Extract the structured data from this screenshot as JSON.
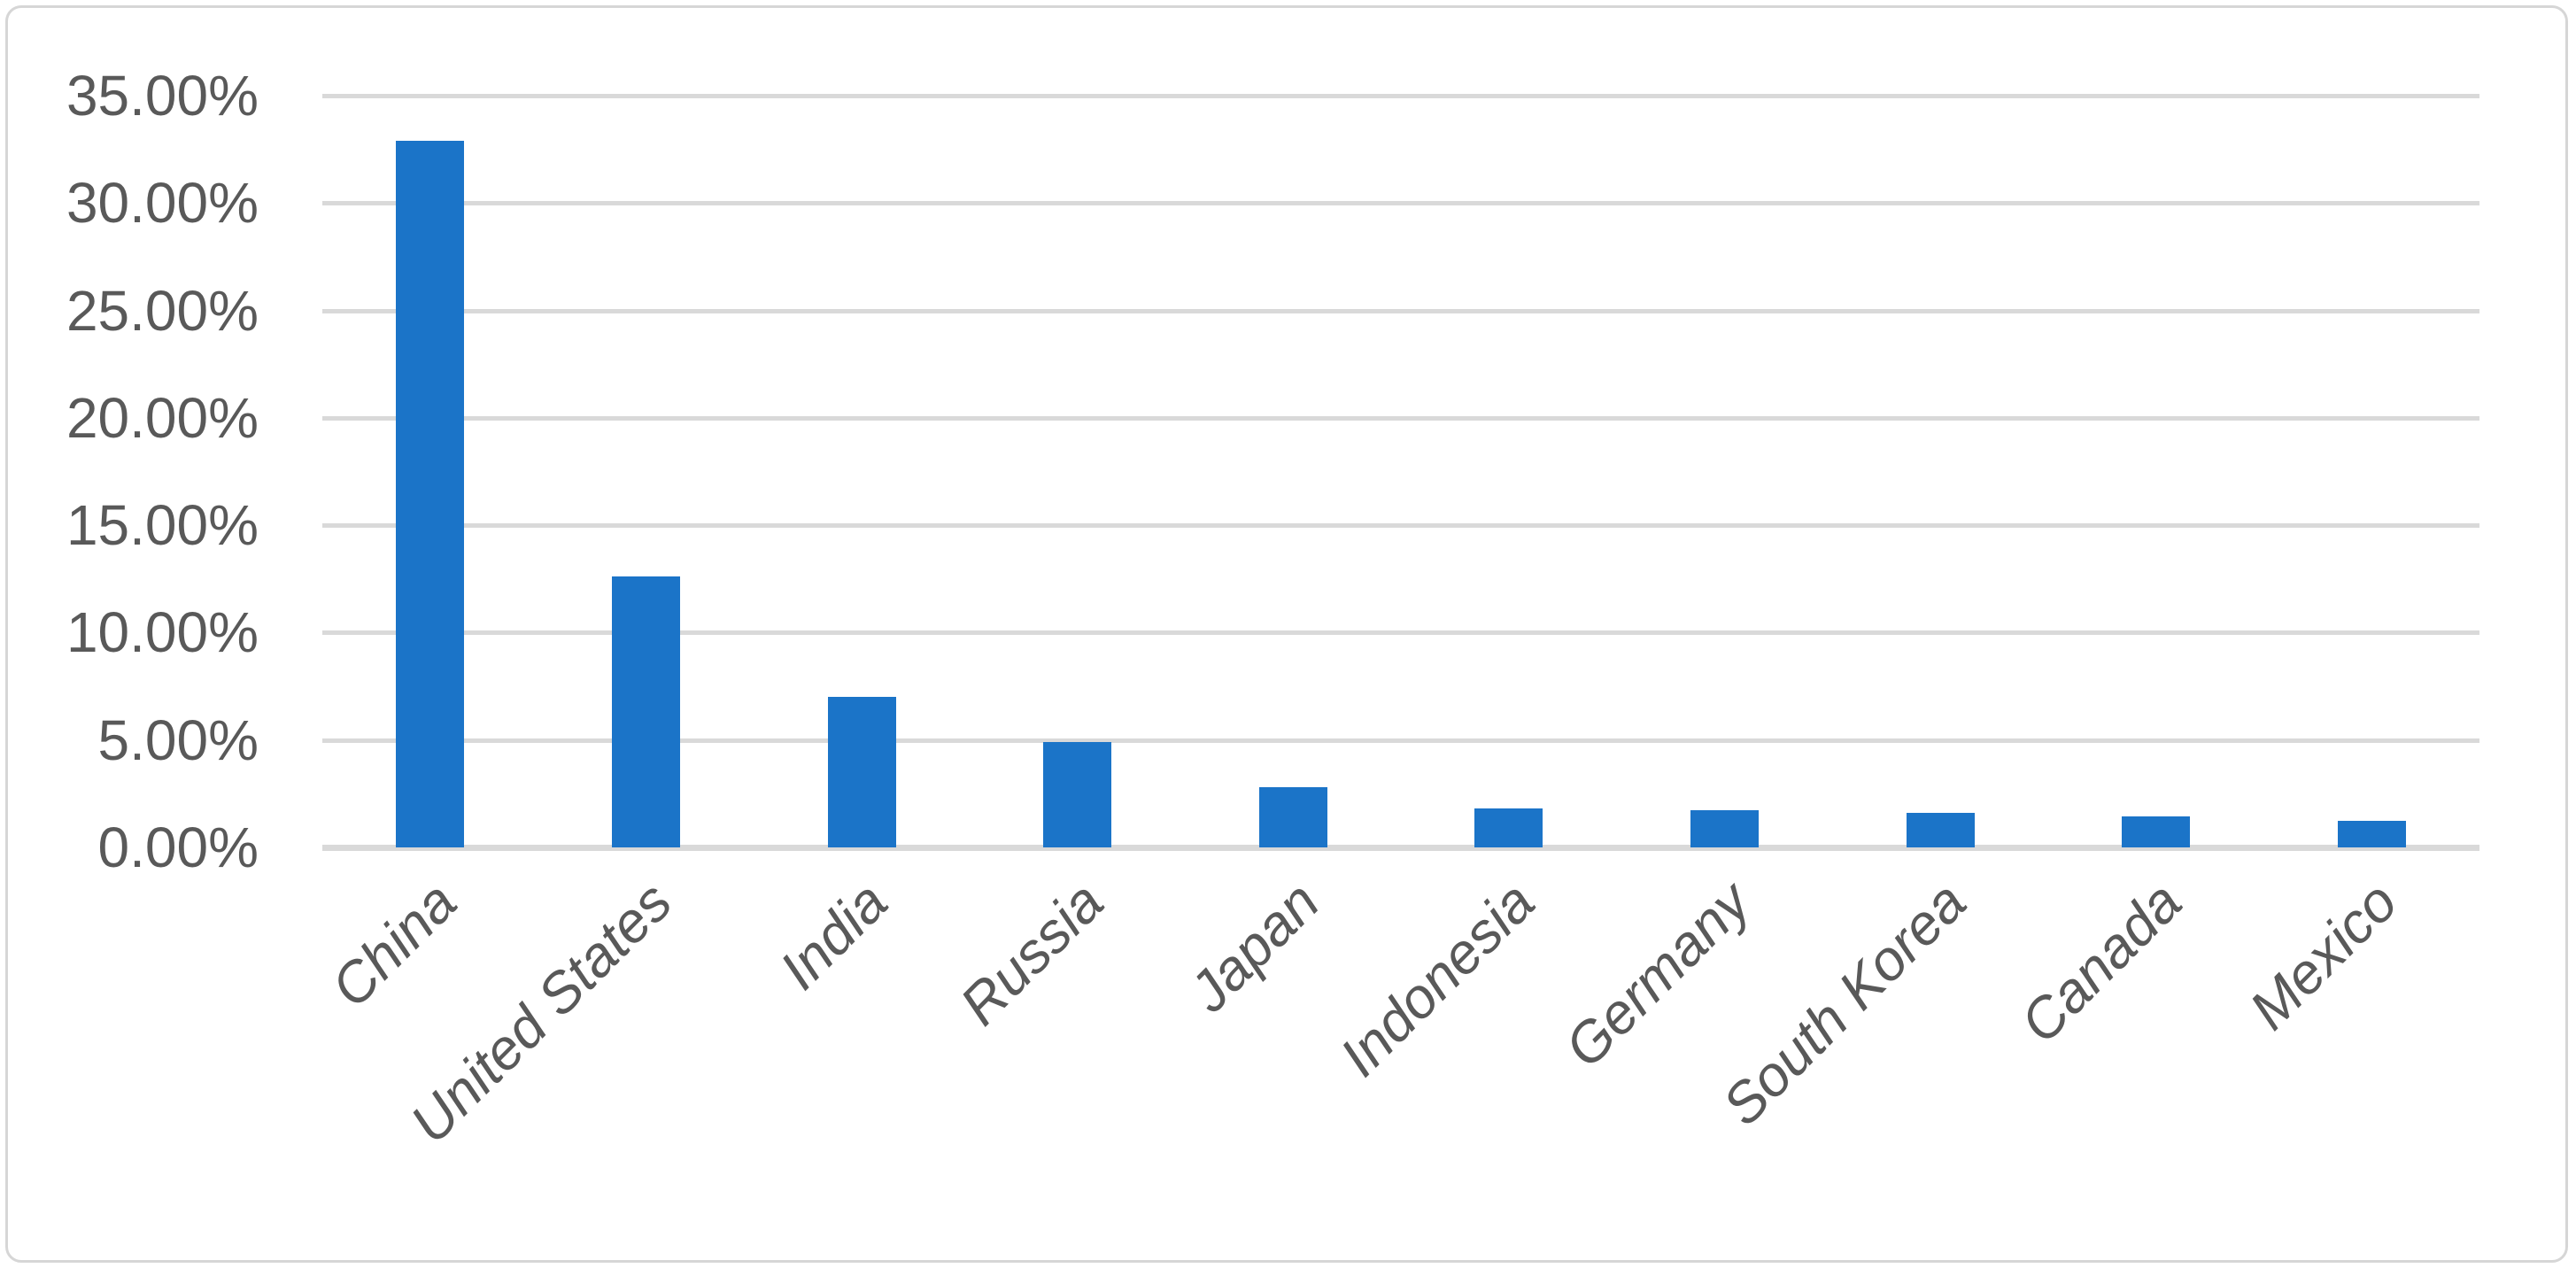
{
  "chart_data": {
    "type": "bar",
    "title": "",
    "xlabel": "",
    "ylabel": "",
    "categories": [
      "China",
      "United States",
      "India",
      "Russia",
      "Japan",
      "Indonesia",
      "Germany",
      "South Korea",
      "Canada",
      "Mexico"
    ],
    "values": [
      32.9,
      12.6,
      7.0,
      4.9,
      2.8,
      1.8,
      1.75,
      1.6,
      1.45,
      1.25
    ],
    "value_unit": "%",
    "ylim": [
      0,
      35
    ],
    "ytick_step": 5,
    "ytick_labels": [
      "0.00%",
      "5.00%",
      "10.00%",
      "15.00%",
      "20.00%",
      "25.00%",
      "30.00%",
      "35.00%"
    ],
    "grid": true,
    "legend": false,
    "colors": {
      "bar": "#1B74C8",
      "gridline": "#D9D9D9",
      "axis_text": "#595959",
      "frame_border": "#D6D6D6",
      "background": "#FFFFFF"
    }
  }
}
